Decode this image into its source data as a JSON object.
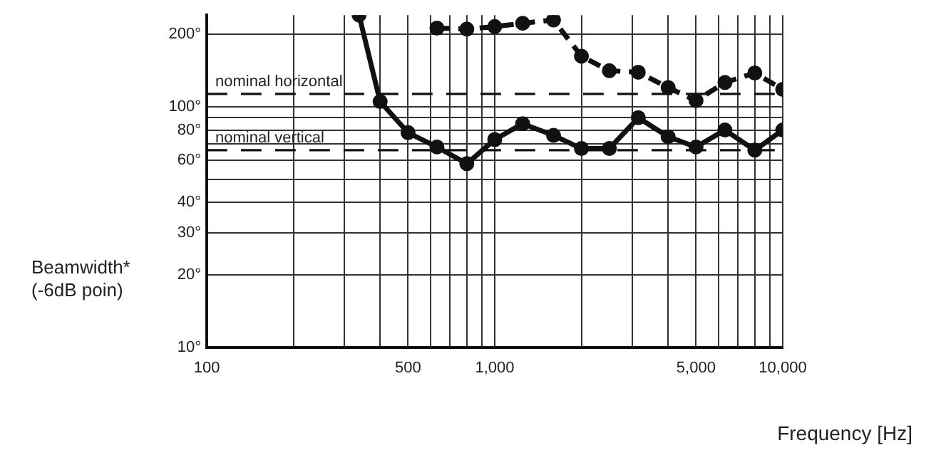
{
  "chart_data": {
    "type": "line",
    "xlabel": "Frequency [Hz]",
    "ylabel": "Beamwidth*\n(-6dB poin)",
    "log": "xy",
    "grid": true,
    "marker": "circle",
    "xlim": [
      100,
      10000
    ],
    "ylim": [
      10,
      240
    ],
    "xticks": [
      100,
      {
        "value": 200,
        "label": null
      },
      {
        "value": 300,
        "label": null
      },
      {
        "value": 400,
        "label": null
      },
      500,
      {
        "value": 600,
        "label": null
      },
      {
        "value": 700,
        "label": null
      },
      {
        "value": 800,
        "label": null
      },
      {
        "value": 900,
        "label": null
      },
      {
        "value": 1000,
        "label": "1,000"
      },
      {
        "value": 2000,
        "label": null
      },
      {
        "value": 3000,
        "label": null
      },
      {
        "value": 4000,
        "label": null
      },
      {
        "value": 5000,
        "label": "5,000"
      },
      {
        "value": 6000,
        "label": null
      },
      {
        "value": 7000,
        "label": null
      },
      {
        "value": 8000,
        "label": null
      },
      {
        "value": 9000,
        "label": null
      },
      {
        "value": 10000,
        "label": "10,000"
      }
    ],
    "yticks": [
      {
        "value": 10,
        "label": "10°"
      },
      {
        "value": 20,
        "label": "20°"
      },
      {
        "value": 30,
        "label": "30°"
      },
      {
        "value": 40,
        "label": "40°"
      },
      {
        "value": 50,
        "label": null
      },
      {
        "value": 60,
        "label": "60°"
      },
      {
        "value": 70,
        "label": null
      },
      {
        "value": 80,
        "label": "80°"
      },
      {
        "value": 90,
        "label": null
      },
      {
        "value": 100,
        "label": "100°"
      },
      {
        "value": 200,
        "label": "200°"
      }
    ],
    "series": [
      {
        "color": "#111111",
        "line_style": "solid",
        "x": [
          338,
          400,
          500,
          630,
          800,
          1000,
          1250,
          1600,
          2000,
          2500,
          3150,
          4000,
          5000,
          6300,
          8000,
          10000
        ],
        "values": [
          240,
          105,
          78,
          68,
          58,
          73,
          85,
          76,
          67,
          67,
          90,
          75,
          68,
          80,
          66,
          80
        ]
      },
      {
        "color": "#111111",
        "line_style": "dashed",
        "x": [
          630,
          800,
          1000,
          1250,
          1600,
          2000,
          2500,
          3150,
          4000,
          5000,
          6300,
          8000,
          10000
        ],
        "values": [
          212,
          210,
          215,
          222,
          229,
          162,
          141,
          139,
          120,
          106,
          126,
          138,
          118
        ]
      }
    ],
    "ref_lines": [
      {
        "axis": "y",
        "value": 113,
        "label": "nominal horizontal",
        "line_style": "dashed"
      },
      {
        "axis": "y",
        "value": 66,
        "label": "nominal vertical",
        "line_style": "dashed"
      }
    ]
  }
}
